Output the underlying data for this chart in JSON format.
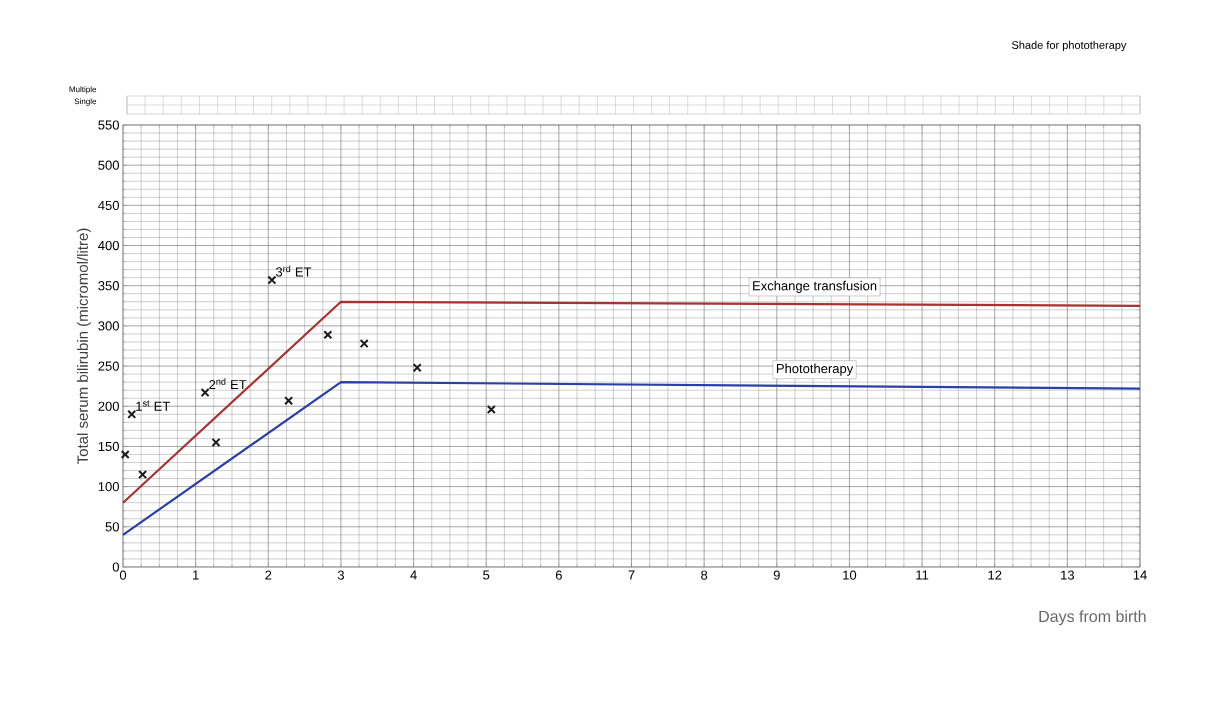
{
  "chart_data": {
    "type": "line",
    "xlabel": "Days from birth",
    "ylabel": "Total serum bilirubin  (micromol/litre)",
    "xlim": [
      0,
      14
    ],
    "ylim": [
      0,
      550
    ],
    "xticks": [
      0,
      1,
      2,
      3,
      4,
      5,
      6,
      7,
      8,
      9,
      10,
      11,
      12,
      13,
      14
    ],
    "yticks": [
      0,
      50,
      100,
      150,
      200,
      250,
      300,
      350,
      400,
      450,
      500,
      550
    ],
    "grid": true,
    "series": [
      {
        "name": "Exchange transfusion",
        "color": "#a83232",
        "x": [
          0,
          3,
          14
        ],
        "values": [
          80,
          330,
          325
        ]
      },
      {
        "name": "Phototherapy",
        "color": "#2a3fa8",
        "x": [
          0,
          3,
          14
        ],
        "values": [
          40,
          230,
          222
        ]
      },
      {
        "type": "scatter",
        "marker": "cross",
        "color": "#1a1a1a",
        "x": [
          0.03,
          0.12,
          0.27,
          1.13,
          1.28,
          2.05,
          2.28,
          2.82,
          3.32,
          4.05,
          5.07
        ],
        "values": [
          140,
          190,
          115,
          217,
          155,
          357,
          207,
          289,
          278,
          248,
          196
        ]
      }
    ],
    "annotations": [
      {
        "text": "1$^{st}$ ET",
        "x": 0.12,
        "y": 190
      },
      {
        "text": "2$^{nd}$ ET",
        "x": 1.13,
        "y": 217
      },
      {
        "text": "3$^{rd}$ ET",
        "x": 2.05,
        "y": 357
      },
      "Shade for phototherapy",
      "Multiple",
      "Single"
    ]
  }
}
